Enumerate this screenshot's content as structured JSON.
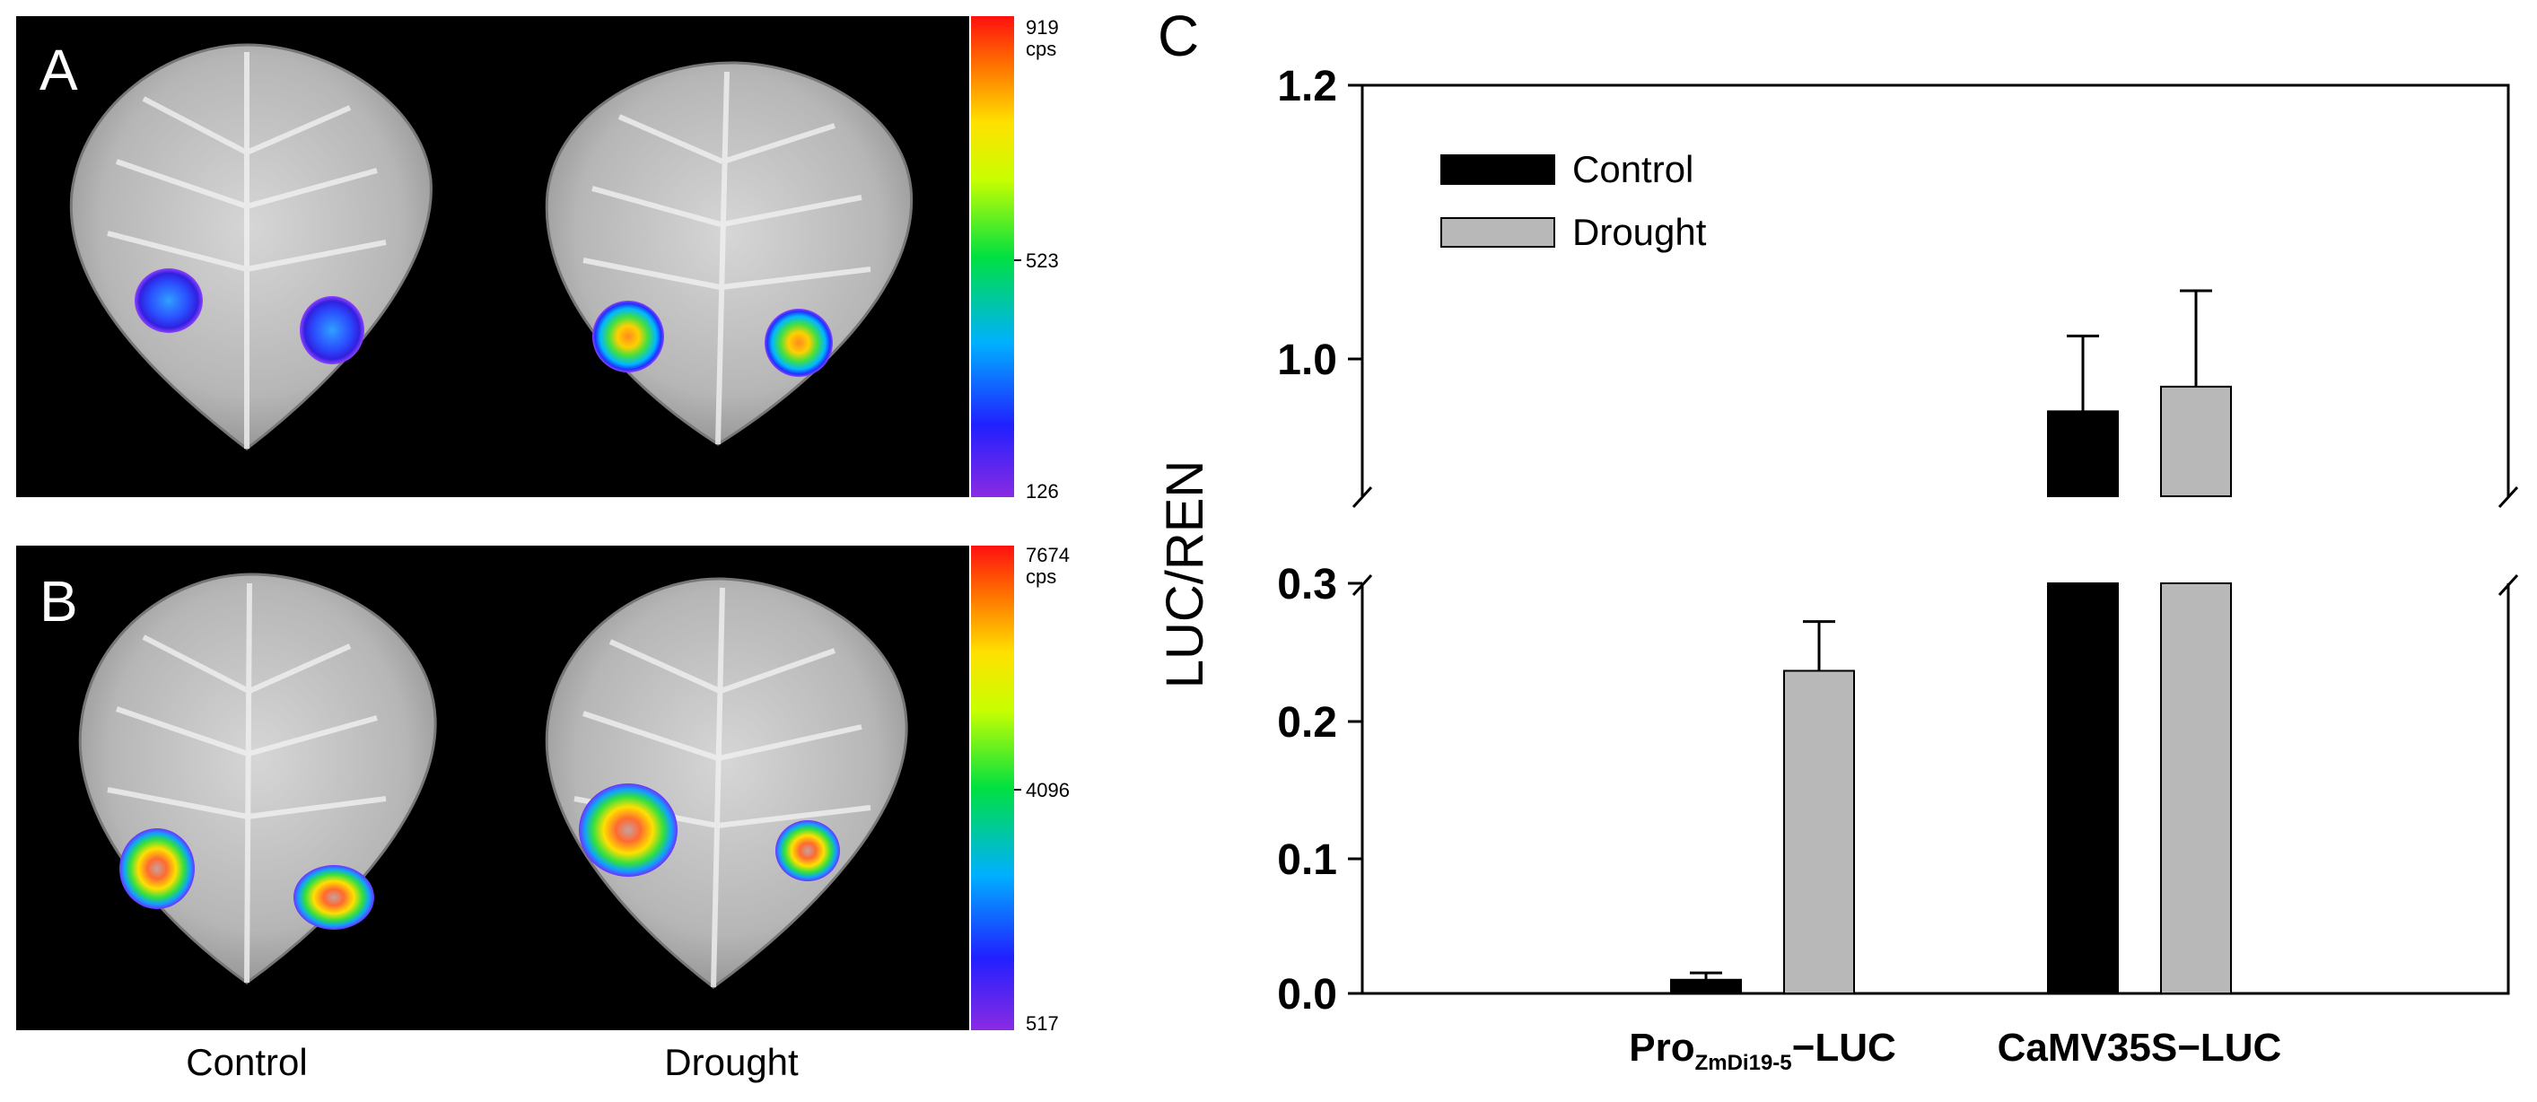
{
  "panels": {
    "a": {
      "letter": "A",
      "scale_max": "919",
      "scale_unit": "cps",
      "scale_mid": "523",
      "scale_min": "126"
    },
    "b": {
      "letter": "B",
      "scale_max": "7674",
      "scale_unit": "cps",
      "scale_mid": "4096",
      "scale_min": "517"
    },
    "conditions": [
      "Control",
      "Drought"
    ]
  },
  "colors": {
    "control": "#000000",
    "drought": "#b8b8b8",
    "image_bg": "#000000"
  },
  "chart_data": {
    "type": "bar",
    "panel_letter": "C",
    "ylabel": "LUC/REN",
    "y_ticks_lower": [
      "0.0",
      "0.1",
      "0.2",
      "0.3"
    ],
    "y_ticks_upper": [
      "1.0",
      "1.2"
    ],
    "y_break": [
      0.3,
      0.9
    ],
    "ylim_lower": [
      0,
      0.3
    ],
    "ylim_upper": [
      0.9,
      1.2
    ],
    "categories": [
      {
        "main": "Pro",
        "sub": "ZmDi19-5",
        "suffix": "−LUC"
      },
      {
        "main": "CaMV35S−LUC",
        "sub": "",
        "suffix": ""
      }
    ],
    "series": [
      {
        "name": "Control",
        "values": [
          0.01,
          0.962
        ],
        "errors": [
          0.005,
          0.055
        ]
      },
      {
        "name": "Drought",
        "values": [
          0.236,
          0.98
        ],
        "errors": [
          0.036,
          0.07
        ]
      }
    ],
    "legend": "top-left"
  }
}
